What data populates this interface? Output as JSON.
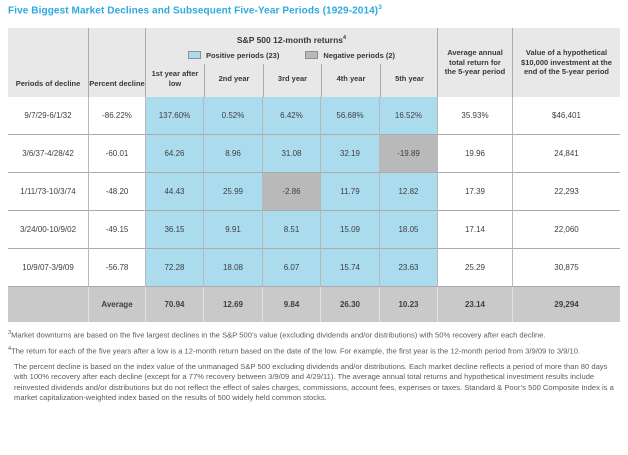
{
  "title": {
    "text": "Five Biggest Market Declines and Subsequent Five-Year Periods (1929-2014)",
    "sup": "3"
  },
  "colors": {
    "accent_blue": "#2CA9E0",
    "positive_cell": "#ABDCEE",
    "negative_cell": "#B9B9B9",
    "header_bg": "#E8E8E8",
    "average_row_bg": "#C9C9C9"
  },
  "table": {
    "group_header": {
      "text": "S&P 500 12-month returns",
      "sup": "4"
    },
    "legend": {
      "positive": "Positive periods (23)",
      "negative": "Negative periods (2)"
    },
    "columns": {
      "period": "Periods of decline",
      "percent": "Percent decline",
      "years": [
        "1st year after low",
        "2nd year",
        "3rd year",
        "4th year",
        "5th year"
      ],
      "average": "Average annual total return for the 5-year period",
      "value": "Value of a hypothetical $10,000 investment at the end of the 5-year period"
    },
    "rows": [
      {
        "period": "9/7/29-6/1/32",
        "percent": "-86.22%",
        "years": [
          "137.60%",
          "0.52%",
          "6.42%",
          "56.68%",
          "16.52%"
        ],
        "negative_years": [],
        "average": "35.93%",
        "value": "$46,401"
      },
      {
        "period": "3/6/37-4/28/42",
        "percent": "-60.01",
        "years": [
          "64.26",
          "8.96",
          "31.08",
          "32.19",
          "-19.89"
        ],
        "negative_years": [
          4
        ],
        "average": "19.96",
        "value": "24,841"
      },
      {
        "period": "1/11/73-10/3/74",
        "percent": "-48.20",
        "years": [
          "44.43",
          "25.99",
          "-2.86",
          "11.79",
          "12.82"
        ],
        "negative_years": [
          2
        ],
        "average": "17.39",
        "value": "22,293"
      },
      {
        "period": "3/24/00-10/9/02",
        "percent": "-49.15",
        "years": [
          "36.15",
          "9.91",
          "8.51",
          "15.09",
          "18.05"
        ],
        "negative_years": [],
        "average": "17.14",
        "value": "22,060"
      },
      {
        "period": "10/9/07-3/9/09",
        "percent": "-56.78",
        "years": [
          "72.28",
          "18.08",
          "6.07",
          "15.74",
          "23.63"
        ],
        "negative_years": [],
        "average": "25.29",
        "value": "30,875"
      }
    ],
    "average_row": {
      "label": "Average",
      "years": [
        "70.94",
        "12.69",
        "9.84",
        "26.30",
        "10.23"
      ],
      "average": "23.14",
      "value": "29,294"
    }
  },
  "footnotes": [
    {
      "sup": "3",
      "text": "Market downturns are based on the five largest declines in the S&P 500’s value (excluding dividends and/or distributions) with 50% recovery after each decline."
    },
    {
      "sup": "4",
      "text": "The return for each of the five years after a low is a 12-month return based on the date of the low. For example, the first year is the 12-month period from 3/9/09 to 3/9/10."
    },
    {
      "sup": "",
      "text": "The percent decline is based on the index value of the unmanaged S&P 500 excluding dividends and/or distributions. Each market decline reflects a period of more than 80 days with 100% recovery after each decline (except for a 77% recovery between 3/9/09 and 4/29/11). The average annual total returns and hypothetical investment results include reinvested dividends and/or distributions but do not reflect the effect of sales charges, commissions, account fees, expenses or taxes. Standard & Poor’s 500 Composite Index is a market capitalization-weighted index based on the results of 500 widely held common stocks."
    }
  ]
}
